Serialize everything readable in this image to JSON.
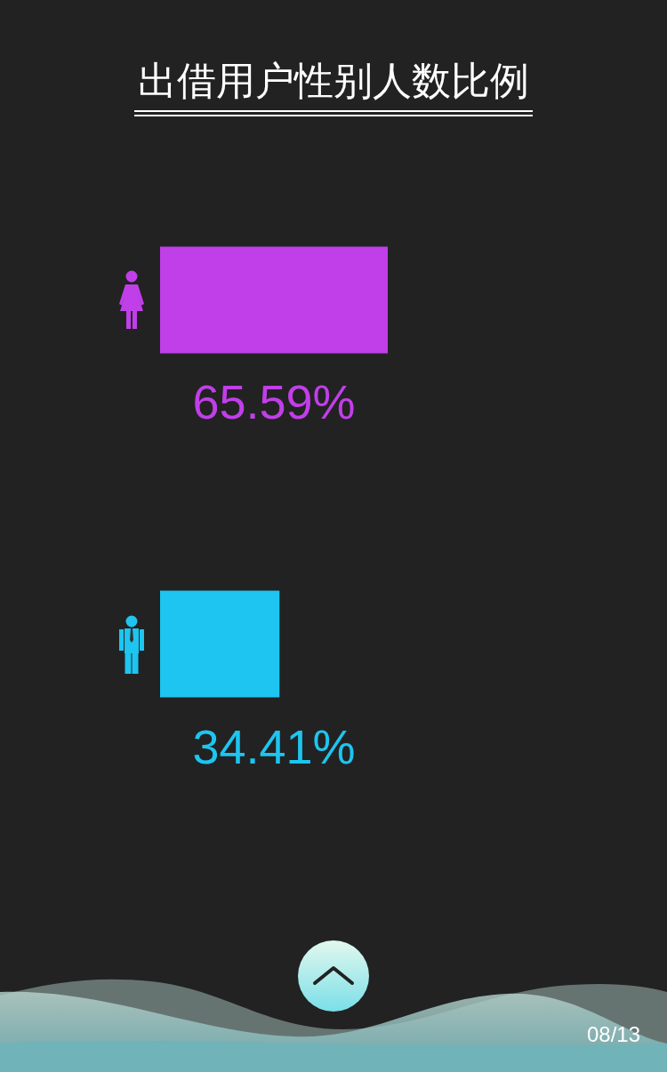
{
  "chart_data": {
    "type": "bar",
    "title": "出借用户性别人数比例",
    "orientation": "horizontal",
    "categories": [
      null,
      null
    ],
    "values": [
      65.59,
      34.41
    ],
    "colors": [
      "#c03fe8",
      "#1dc5f0"
    ],
    "value_labels": [
      "65.59%",
      "34.41%"
    ],
    "tick_labels": false,
    "annotations": [
      "08/13"
    ]
  }
}
